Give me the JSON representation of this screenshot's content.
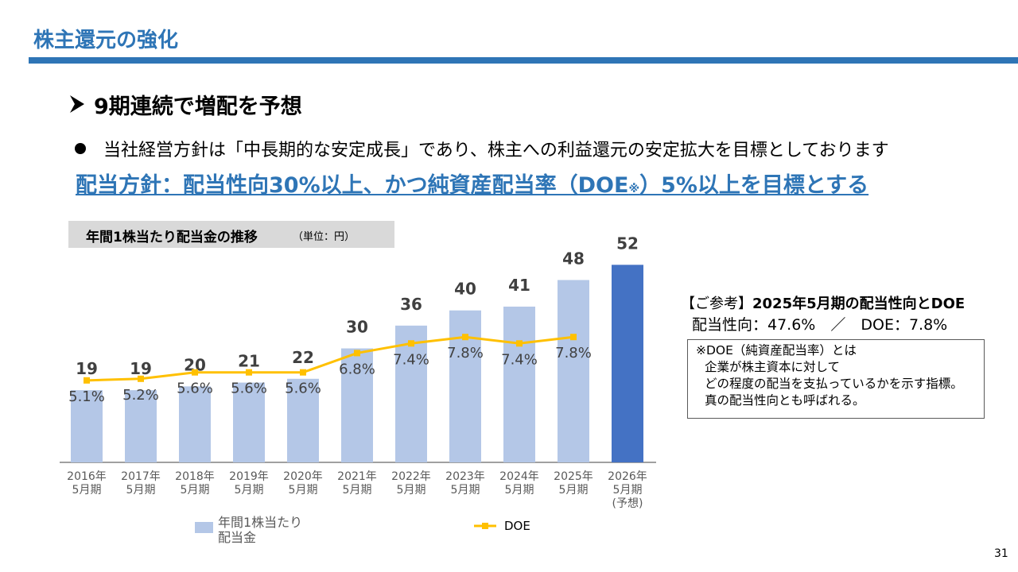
{
  "header": {
    "title": "株主還元の強化"
  },
  "heading": "9期連続で増配を予想",
  "bullet": "当社経営方針は「中長期的な安定成長」であり、株主への利益還元の安定拡大を目標としております",
  "policy": {
    "before": "配当方針：配当性向30%以上、かつ純資産配当率（DOE",
    "note": "※",
    "after": "）5%以上を目標とする"
  },
  "chart_data": {
    "type": "combo",
    "title": "年間1株当たり配当金の推移",
    "unit": "（単位：円）",
    "categories": [
      [
        "2016年",
        "5月期"
      ],
      [
        "2017年",
        "5月期"
      ],
      [
        "2018年",
        "5月期"
      ],
      [
        "2019年",
        "5月期"
      ],
      [
        "2020年",
        "5月期"
      ],
      [
        "2021年",
        "5月期"
      ],
      [
        "2022年",
        "5月期"
      ],
      [
        "2023年",
        "5月期"
      ],
      [
        "2024年",
        "5月期"
      ],
      [
        "2025年",
        "5月期"
      ],
      [
        "2026年",
        "5月期",
        "(予想)"
      ]
    ],
    "series": [
      {
        "name": "年間1株当たり配当金",
        "type": "bar",
        "color": "#b4c7e7",
        "colors": [
          "#b4c7e7",
          "#b4c7e7",
          "#b4c7e7",
          "#b4c7e7",
          "#b4c7e7",
          "#b4c7e7",
          "#b4c7e7",
          "#b4c7e7",
          "#b4c7e7",
          "#b4c7e7",
          "#4472c4"
        ],
        "values": [
          19,
          19,
          20,
          21,
          22,
          30,
          36,
          40,
          41,
          48,
          52
        ]
      },
      {
        "name": "DOE",
        "type": "line",
        "axis": "y2",
        "color": "#ffc000",
        "values": [
          5.1,
          5.2,
          5.6,
          5.6,
          5.6,
          6.8,
          7.4,
          7.8,
          7.4,
          7.8,
          null
        ],
        "value_labels": [
          "5.1%",
          "5.2%",
          "5.6%",
          "5.6%",
          "5.6%",
          "6.8%",
          "7.4%",
          "7.8%",
          "7.4%",
          "7.8%",
          null
        ]
      }
    ],
    "ylim": [
      0,
      55
    ],
    "y2lim": [
      0,
      13
    ]
  },
  "reference": {
    "label": "【ご参考】",
    "title": "2025年5月期の配当性向とDOE",
    "summary": "配当性向：47.6%　／　DOE：7.8%",
    "notes": [
      "※DOE（純資産配当率）とは",
      "企業が株主資本に対して",
      "どの程度の配当を支払っているかを示す指標。",
      "真の配当性向とも呼ばれる。"
    ]
  },
  "page_number": "31"
}
